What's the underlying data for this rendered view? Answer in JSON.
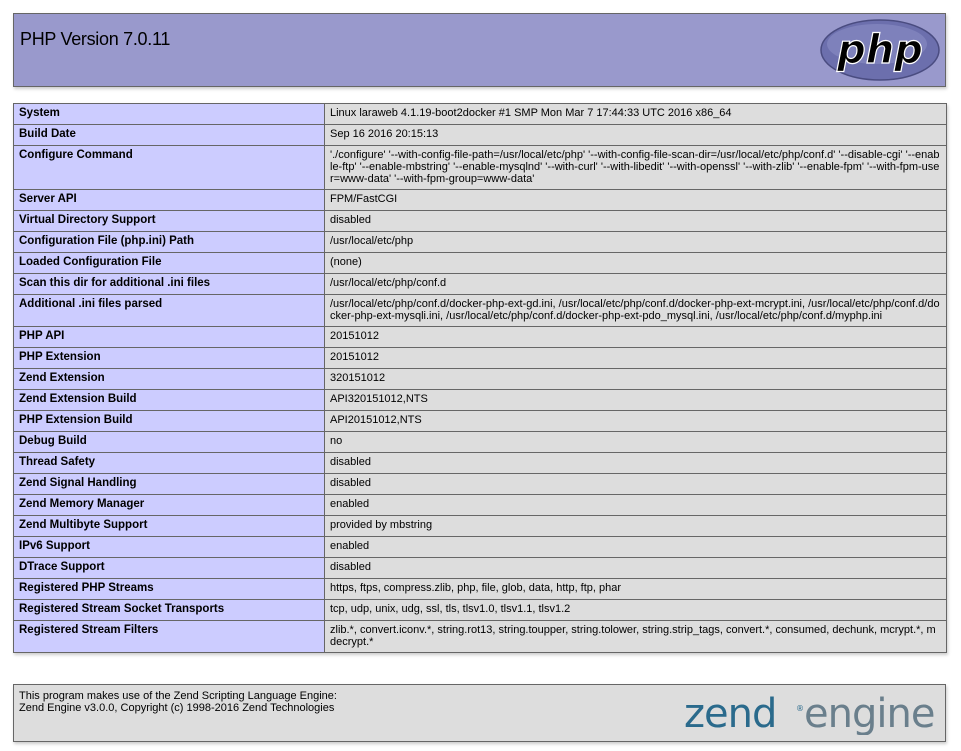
{
  "header": {
    "title": "PHP Version 7.0.11",
    "logo_text": "php"
  },
  "rows": [
    {
      "label": "System",
      "value": "Linux laraweb 4.1.19-boot2docker #1 SMP Mon Mar 7 17:44:33 UTC 2016 x86_64"
    },
    {
      "label": "Build Date",
      "value": "Sep 16 2016 20:15:13"
    },
    {
      "label": "Configure Command",
      "value": "'./configure' '--with-config-file-path=/usr/local/etc/php' '--with-config-file-scan-dir=/usr/local/etc/php/conf.d' '--disable-cgi' '--enable-ftp' '--enable-mbstring' '--enable-mysqlnd' '--with-curl' '--with-libedit' '--with-openssl' '--with-zlib' '--enable-fpm' '--with-fpm-user=www-data' '--with-fpm-group=www-data'"
    },
    {
      "label": "Server API",
      "value": "FPM/FastCGI"
    },
    {
      "label": "Virtual Directory Support",
      "value": "disabled"
    },
    {
      "label": "Configuration File (php.ini) Path",
      "value": "/usr/local/etc/php"
    },
    {
      "label": "Loaded Configuration File",
      "value": "(none)"
    },
    {
      "label": "Scan this dir for additional .ini files",
      "value": "/usr/local/etc/php/conf.d"
    },
    {
      "label": "Additional .ini files parsed",
      "value": "/usr/local/etc/php/conf.d/docker-php-ext-gd.ini, /usr/local/etc/php/conf.d/docker-php-ext-mcrypt.ini, /usr/local/etc/php/conf.d/docker-php-ext-mysqli.ini, /usr/local/etc/php/conf.d/docker-php-ext-pdo_mysql.ini, /usr/local/etc/php/conf.d/myphp.ini"
    },
    {
      "label": "PHP API",
      "value": "20151012"
    },
    {
      "label": "PHP Extension",
      "value": "20151012"
    },
    {
      "label": "Zend Extension",
      "value": "320151012"
    },
    {
      "label": "Zend Extension Build",
      "value": "API320151012,NTS"
    },
    {
      "label": "PHP Extension Build",
      "value": "API20151012,NTS"
    },
    {
      "label": "Debug Build",
      "value": "no"
    },
    {
      "label": "Thread Safety",
      "value": "disabled"
    },
    {
      "label": "Zend Signal Handling",
      "value": "disabled"
    },
    {
      "label": "Zend Memory Manager",
      "value": "enabled"
    },
    {
      "label": "Zend Multibyte Support",
      "value": "provided by mbstring"
    },
    {
      "label": "IPv6 Support",
      "value": "enabled"
    },
    {
      "label": "DTrace Support",
      "value": "disabled"
    },
    {
      "label": "Registered PHP Streams",
      "value": "https, ftps, compress.zlib, php, file, glob, data, http, ftp, phar"
    },
    {
      "label": "Registered Stream Socket Transports",
      "value": "tcp, udp, unix, udg, ssl, tls, tlsv1.0, tlsv1.1, tlsv1.2"
    },
    {
      "label": "Registered Stream Filters",
      "value": "zlib.*, convert.iconv.*, string.rot13, string.toupper, string.tolower, string.strip_tags, convert.*, consumed, dechunk, mcrypt.*, mdecrypt.*"
    }
  ],
  "footer": {
    "line1": "This program makes use of the Zend Scripting Language Engine:",
    "line2": "Zend Engine v3.0.0, Copyright (c) 1998-2016 Zend Technologies",
    "logo_text": "zend engine"
  }
}
